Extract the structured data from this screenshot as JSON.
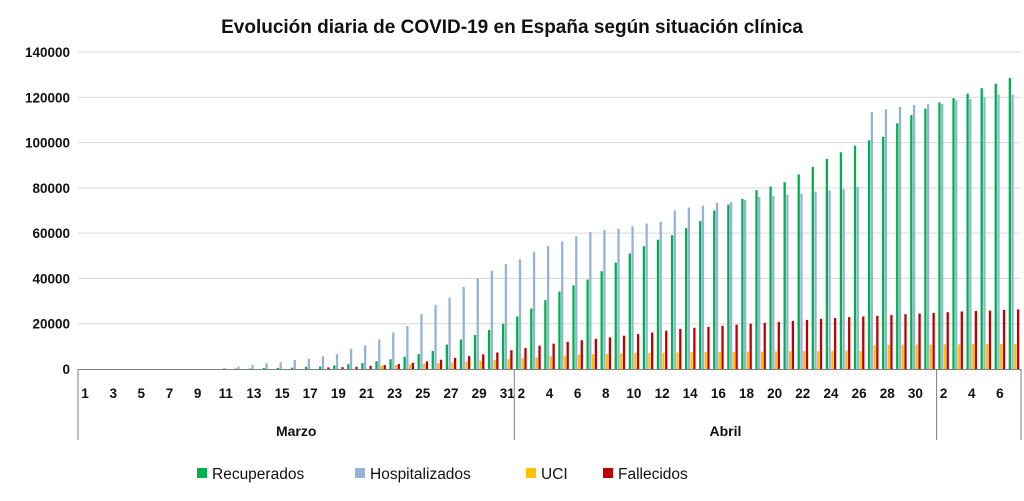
{
  "chart_data": {
    "type": "bar",
    "title": "Evolución diaria de COVID-19 en España según situación clínica",
    "xlabel": "",
    "ylabel": "",
    "ylim": [
      0,
      140000
    ],
    "yticks": [
      "0",
      "20000",
      "40000",
      "60000",
      "80000",
      "100000",
      "120000",
      "140000"
    ],
    "grid": true,
    "legend_position": "bottom",
    "months": [
      {
        "label": "Marzo",
        "days": [
          1,
          2,
          3,
          4,
          5,
          6,
          7,
          8,
          9,
          10,
          11,
          12,
          13,
          14,
          15,
          16,
          17,
          18,
          19,
          20,
          21,
          22,
          23,
          24,
          25,
          26,
          27,
          28,
          29,
          30,
          31
        ]
      },
      {
        "label": "Abril",
        "days": [
          1,
          2,
          3,
          4,
          5,
          6,
          7,
          8,
          9,
          10,
          11,
          12,
          13,
          14,
          15,
          16,
          17,
          18,
          19,
          20,
          21,
          22,
          23,
          24,
          25,
          26,
          27,
          28,
          29,
          30
        ]
      },
      {
        "label": "",
        "days": [
          1,
          2,
          3,
          4,
          5,
          6
        ]
      }
    ],
    "tick_labels": [
      "1",
      "3",
      "5",
      "7",
      "9",
      "11",
      "13",
      "15",
      "17",
      "19",
      "21",
      "23",
      "25",
      "27",
      "29",
      "31",
      "2",
      "4",
      "6",
      "8",
      "10",
      "12",
      "14",
      "16",
      "18",
      "20",
      "22",
      "24",
      "26",
      "28",
      "30",
      "2",
      "4",
      "6"
    ],
    "series": [
      {
        "name": "Recuperados",
        "color": "#00B050",
        "values": [
          0,
          0,
          0,
          0,
          0,
          0,
          0,
          0,
          0,
          0,
          0,
          200,
          200,
          500,
          500,
          600,
          1000,
          1100,
          1600,
          2100,
          2600,
          3400,
          4300,
          5400,
          6600,
          8000,
          10800,
          13000,
          15000,
          17200,
          20000,
          23200,
          26700,
          30400,
          34200,
          36900,
          39500,
          43200,
          47000,
          51000,
          54200,
          57100,
          59100,
          62200,
          65300,
          70000,
          72600,
          75100,
          79000,
          80600,
          82500,
          85900,
          89300,
          92800,
          95700,
          98600,
          101000,
          102500,
          108500,
          112100,
          115000,
          117700,
          119600,
          121600,
          124000,
          126000,
          128500
        ]
      },
      {
        "name": "Hospitalizados",
        "color": "#95B3D7",
        "values": [
          0,
          0,
          0,
          0,
          0,
          0,
          0,
          0,
          0,
          0,
          500,
          1000,
          1800,
          2500,
          3000,
          4000,
          4500,
          5600,
          6500,
          8900,
          10500,
          13000,
          16200,
          19000,
          24200,
          28300,
          31500,
          36300,
          40000,
          43400,
          46300,
          48400,
          51700,
          54300,
          56400,
          58600,
          60500,
          61400,
          62000,
          63100,
          64200,
          65000,
          70000,
          71300,
          72100,
          73400,
          73700,
          74700,
          76000,
          76400,
          77000,
          77400,
          78400,
          78900,
          79400,
          80400,
          113500,
          114700,
          115700,
          116600,
          116900,
          117000,
          118700,
          119200,
          120000,
          121300,
          121200
        ]
      },
      {
        "name": "UCI",
        "color": "#FFC000",
        "values": [
          0,
          0,
          0,
          0,
          0,
          0,
          0,
          0,
          0,
          0,
          0,
          0,
          0,
          0,
          0,
          0,
          0,
          0,
          0,
          0,
          0,
          1500,
          1700,
          2000,
          2300,
          2600,
          2900,
          3300,
          3700,
          4000,
          4400,
          4800,
          5200,
          5600,
          6000,
          6300,
          6500,
          6700,
          6900,
          7000,
          7100,
          7200,
          7300,
          7400,
          7500,
          7600,
          7600,
          7700,
          7700,
          7800,
          7800,
          7900,
          7900,
          8000,
          8000,
          8000,
          10600,
          10700,
          10700,
          10800,
          10800,
          10900,
          10900,
          11000,
          11000,
          11100,
          11100
        ]
      },
      {
        "name": "Fallecidos",
        "color": "#C00000",
        "values": [
          0,
          0,
          0,
          0,
          0,
          0,
          0,
          0,
          0,
          0,
          0,
          0,
          0,
          0,
          0,
          0,
          0,
          700,
          800,
          1000,
          1400,
          1700,
          2200,
          2700,
          3400,
          4100,
          4900,
          5700,
          6500,
          7300,
          8300,
          9300,
          10300,
          11200,
          12000,
          12700,
          13300,
          14000,
          14700,
          15400,
          16100,
          16900,
          17700,
          18200,
          18600,
          19100,
          19600,
          20000,
          20400,
          20800,
          21200,
          21700,
          22200,
          22500,
          22900,
          23200,
          23500,
          23800,
          24200,
          24500,
          24800,
          25100,
          25400,
          25600,
          25800,
          26100,
          26300
        ]
      }
    ]
  }
}
